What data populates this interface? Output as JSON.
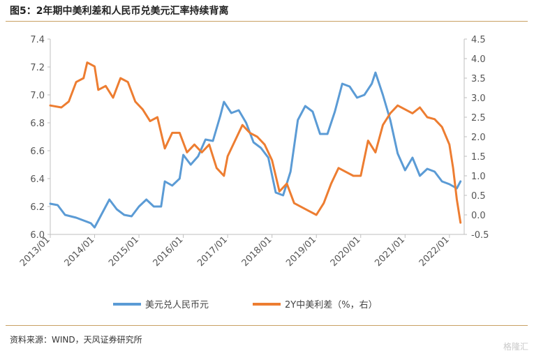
{
  "header": {
    "title": "图5：2年期中美利差和人民币兑美元汇率持续背离"
  },
  "footer": {
    "source": "资料来源：WIND，天风证券研究所",
    "watermark": "格隆汇"
  },
  "colors": {
    "usdcny": "#5b9bd5",
    "spread": "#ed7d31",
    "rule": "#c8a063",
    "axis": "#bfbfbf"
  },
  "chart_data": {
    "type": "line",
    "title": "",
    "x_tick_labels": [
      "2013/01",
      "2014/01",
      "2015/01",
      "2016/01",
      "2017/01",
      "2018/01",
      "2019/01",
      "2020/01",
      "2021/01",
      "2022/01"
    ],
    "x_range": [
      "2013-01",
      "2022-04"
    ],
    "y_left": {
      "range": [
        6.0,
        7.4
      ],
      "ticks": [
        "6.0",
        "6.2",
        "6.4",
        "6.6",
        "6.8",
        "7.0",
        "7.2",
        "7.4"
      ]
    },
    "y_right": {
      "range": [
        -0.5,
        4.5
      ],
      "ticks": [
        "-0.5",
        "0.0",
        "0.5",
        "1.0",
        "1.5",
        "2.0",
        "2.5",
        "3.0",
        "3.5",
        "4.0",
        "4.5"
      ]
    },
    "legend_position": "bottom",
    "series": [
      {
        "name": "美元兑人民币元",
        "axis": "left",
        "points": [
          [
            "2013-01",
            6.22
          ],
          [
            "2013-03",
            6.21
          ],
          [
            "2013-05",
            6.14
          ],
          [
            "2013-08",
            6.12
          ],
          [
            "2013-10",
            6.1
          ],
          [
            "2013-12",
            6.08
          ],
          [
            "2014-01",
            6.05
          ],
          [
            "2014-03",
            6.15
          ],
          [
            "2014-05",
            6.25
          ],
          [
            "2014-07",
            6.18
          ],
          [
            "2014-09",
            6.14
          ],
          [
            "2014-11",
            6.13
          ],
          [
            "2015-01",
            6.2
          ],
          [
            "2015-03",
            6.25
          ],
          [
            "2015-05",
            6.2
          ],
          [
            "2015-07",
            6.2
          ],
          [
            "2015-08",
            6.38
          ],
          [
            "2015-10",
            6.35
          ],
          [
            "2015-12",
            6.4
          ],
          [
            "2016-01",
            6.57
          ],
          [
            "2016-03",
            6.5
          ],
          [
            "2016-05",
            6.56
          ],
          [
            "2016-07",
            6.68
          ],
          [
            "2016-09",
            6.67
          ],
          [
            "2016-11",
            6.85
          ],
          [
            "2016-12",
            6.95
          ],
          [
            "2017-02",
            6.87
          ],
          [
            "2017-04",
            6.89
          ],
          [
            "2017-06",
            6.8
          ],
          [
            "2017-08",
            6.66
          ],
          [
            "2017-10",
            6.62
          ],
          [
            "2017-12",
            6.55
          ],
          [
            "2018-02",
            6.3
          ],
          [
            "2018-04",
            6.28
          ],
          [
            "2018-06",
            6.45
          ],
          [
            "2018-08",
            6.82
          ],
          [
            "2018-10",
            6.92
          ],
          [
            "2018-12",
            6.88
          ],
          [
            "2019-02",
            6.72
          ],
          [
            "2019-04",
            6.72
          ],
          [
            "2019-06",
            6.88
          ],
          [
            "2019-08",
            7.08
          ],
          [
            "2019-10",
            7.06
          ],
          [
            "2019-12",
            6.98
          ],
          [
            "2020-02",
            7.0
          ],
          [
            "2020-04",
            7.08
          ],
          [
            "2020-05",
            7.16
          ],
          [
            "2020-07",
            7.0
          ],
          [
            "2020-09",
            6.82
          ],
          [
            "2020-11",
            6.58
          ],
          [
            "2021-01",
            6.46
          ],
          [
            "2021-03",
            6.55
          ],
          [
            "2021-05",
            6.42
          ],
          [
            "2021-07",
            6.47
          ],
          [
            "2021-09",
            6.45
          ],
          [
            "2021-11",
            6.38
          ],
          [
            "2022-01",
            6.36
          ],
          [
            "2022-03",
            6.33
          ],
          [
            "2022-04",
            6.38
          ]
        ]
      },
      {
        "name": "2Y中美利差（%，右）",
        "axis": "right",
        "points": [
          [
            "2013-01",
            2.8
          ],
          [
            "2013-04",
            2.75
          ],
          [
            "2013-06",
            2.9
          ],
          [
            "2013-08",
            3.4
          ],
          [
            "2013-10",
            3.5
          ],
          [
            "2013-11",
            3.9
          ],
          [
            "2014-01",
            3.8
          ],
          [
            "2014-02",
            3.2
          ],
          [
            "2014-04",
            3.3
          ],
          [
            "2014-06",
            3.0
          ],
          [
            "2014-08",
            3.5
          ],
          [
            "2014-10",
            3.4
          ],
          [
            "2014-12",
            2.9
          ],
          [
            "2015-02",
            2.7
          ],
          [
            "2015-04",
            2.4
          ],
          [
            "2015-06",
            2.5
          ],
          [
            "2015-08",
            1.7
          ],
          [
            "2015-10",
            2.1
          ],
          [
            "2015-12",
            2.1
          ],
          [
            "2016-02",
            1.6
          ],
          [
            "2016-04",
            1.8
          ],
          [
            "2016-06",
            1.6
          ],
          [
            "2016-08",
            1.8
          ],
          [
            "2016-10",
            1.2
          ],
          [
            "2016-12",
            1.0
          ],
          [
            "2017-01",
            1.5
          ],
          [
            "2017-03",
            1.9
          ],
          [
            "2017-05",
            2.3
          ],
          [
            "2017-07",
            2.1
          ],
          [
            "2017-09",
            2.0
          ],
          [
            "2017-11",
            1.8
          ],
          [
            "2018-01",
            1.4
          ],
          [
            "2018-03",
            0.6
          ],
          [
            "2018-05",
            0.8
          ],
          [
            "2018-07",
            0.3
          ],
          [
            "2018-09",
            0.2
          ],
          [
            "2018-11",
            0.1
          ],
          [
            "2019-01",
            0.0
          ],
          [
            "2019-03",
            0.3
          ],
          [
            "2019-05",
            0.8
          ],
          [
            "2019-07",
            1.2
          ],
          [
            "2019-09",
            1.1
          ],
          [
            "2019-11",
            1.0
          ],
          [
            "2020-01",
            1.0
          ],
          [
            "2020-03",
            1.9
          ],
          [
            "2020-05",
            1.6
          ],
          [
            "2020-07",
            2.3
          ],
          [
            "2020-09",
            2.6
          ],
          [
            "2020-11",
            2.8
          ],
          [
            "2021-01",
            2.7
          ],
          [
            "2021-03",
            2.6
          ],
          [
            "2021-05",
            2.75
          ],
          [
            "2021-07",
            2.5
          ],
          [
            "2021-09",
            2.45
          ],
          [
            "2021-11",
            2.25
          ],
          [
            "2022-01",
            1.8
          ],
          [
            "2022-02",
            1.2
          ],
          [
            "2022-03",
            0.4
          ],
          [
            "2022-04",
            -0.2
          ]
        ]
      }
    ]
  }
}
